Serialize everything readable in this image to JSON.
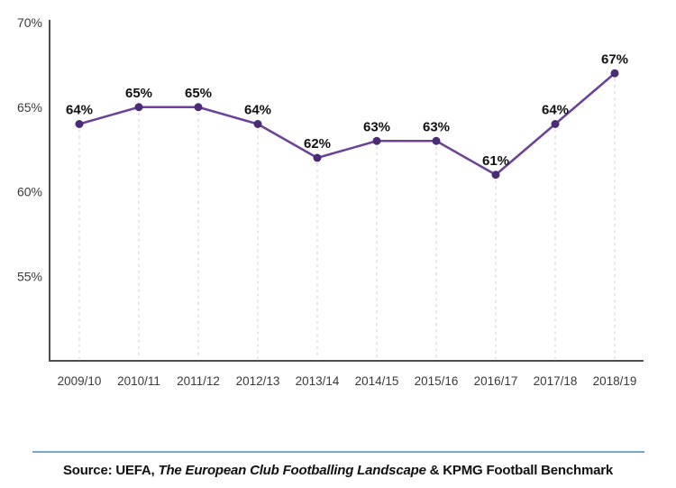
{
  "chart_data": {
    "type": "line",
    "categories": [
      "2009/10",
      "2010/11",
      "2011/12",
      "2012/13",
      "2013/14",
      "2014/15",
      "2015/16",
      "2016/17",
      "2017/18",
      "2018/19"
    ],
    "values": [
      64,
      65,
      65,
      64,
      62,
      63,
      63,
      61,
      64,
      67
    ],
    "unit": "%",
    "title": "",
    "xlabel": "",
    "ylabel": "",
    "ylim": [
      50,
      70
    ],
    "yticks": [
      70,
      65,
      60,
      55
    ],
    "ytick_labels": [
      "70%",
      "65%",
      "60%",
      "55%"
    ],
    "grid": "vertical-dashed",
    "legend": "none",
    "colors": {
      "line": "#6c4198",
      "point": "#4a2b74",
      "value_label": "#111111",
      "axis": "#4d4d4d",
      "gridline": "#cccccc",
      "tick_label": "#3a3a3a"
    }
  },
  "footer": {
    "divider_color": "#7ba6ca",
    "source": {
      "prefix": "Source: UEFA, ",
      "italic": "The European Club Footballing Landscape",
      "suffix": " & KPMG Football Benchmark"
    }
  }
}
